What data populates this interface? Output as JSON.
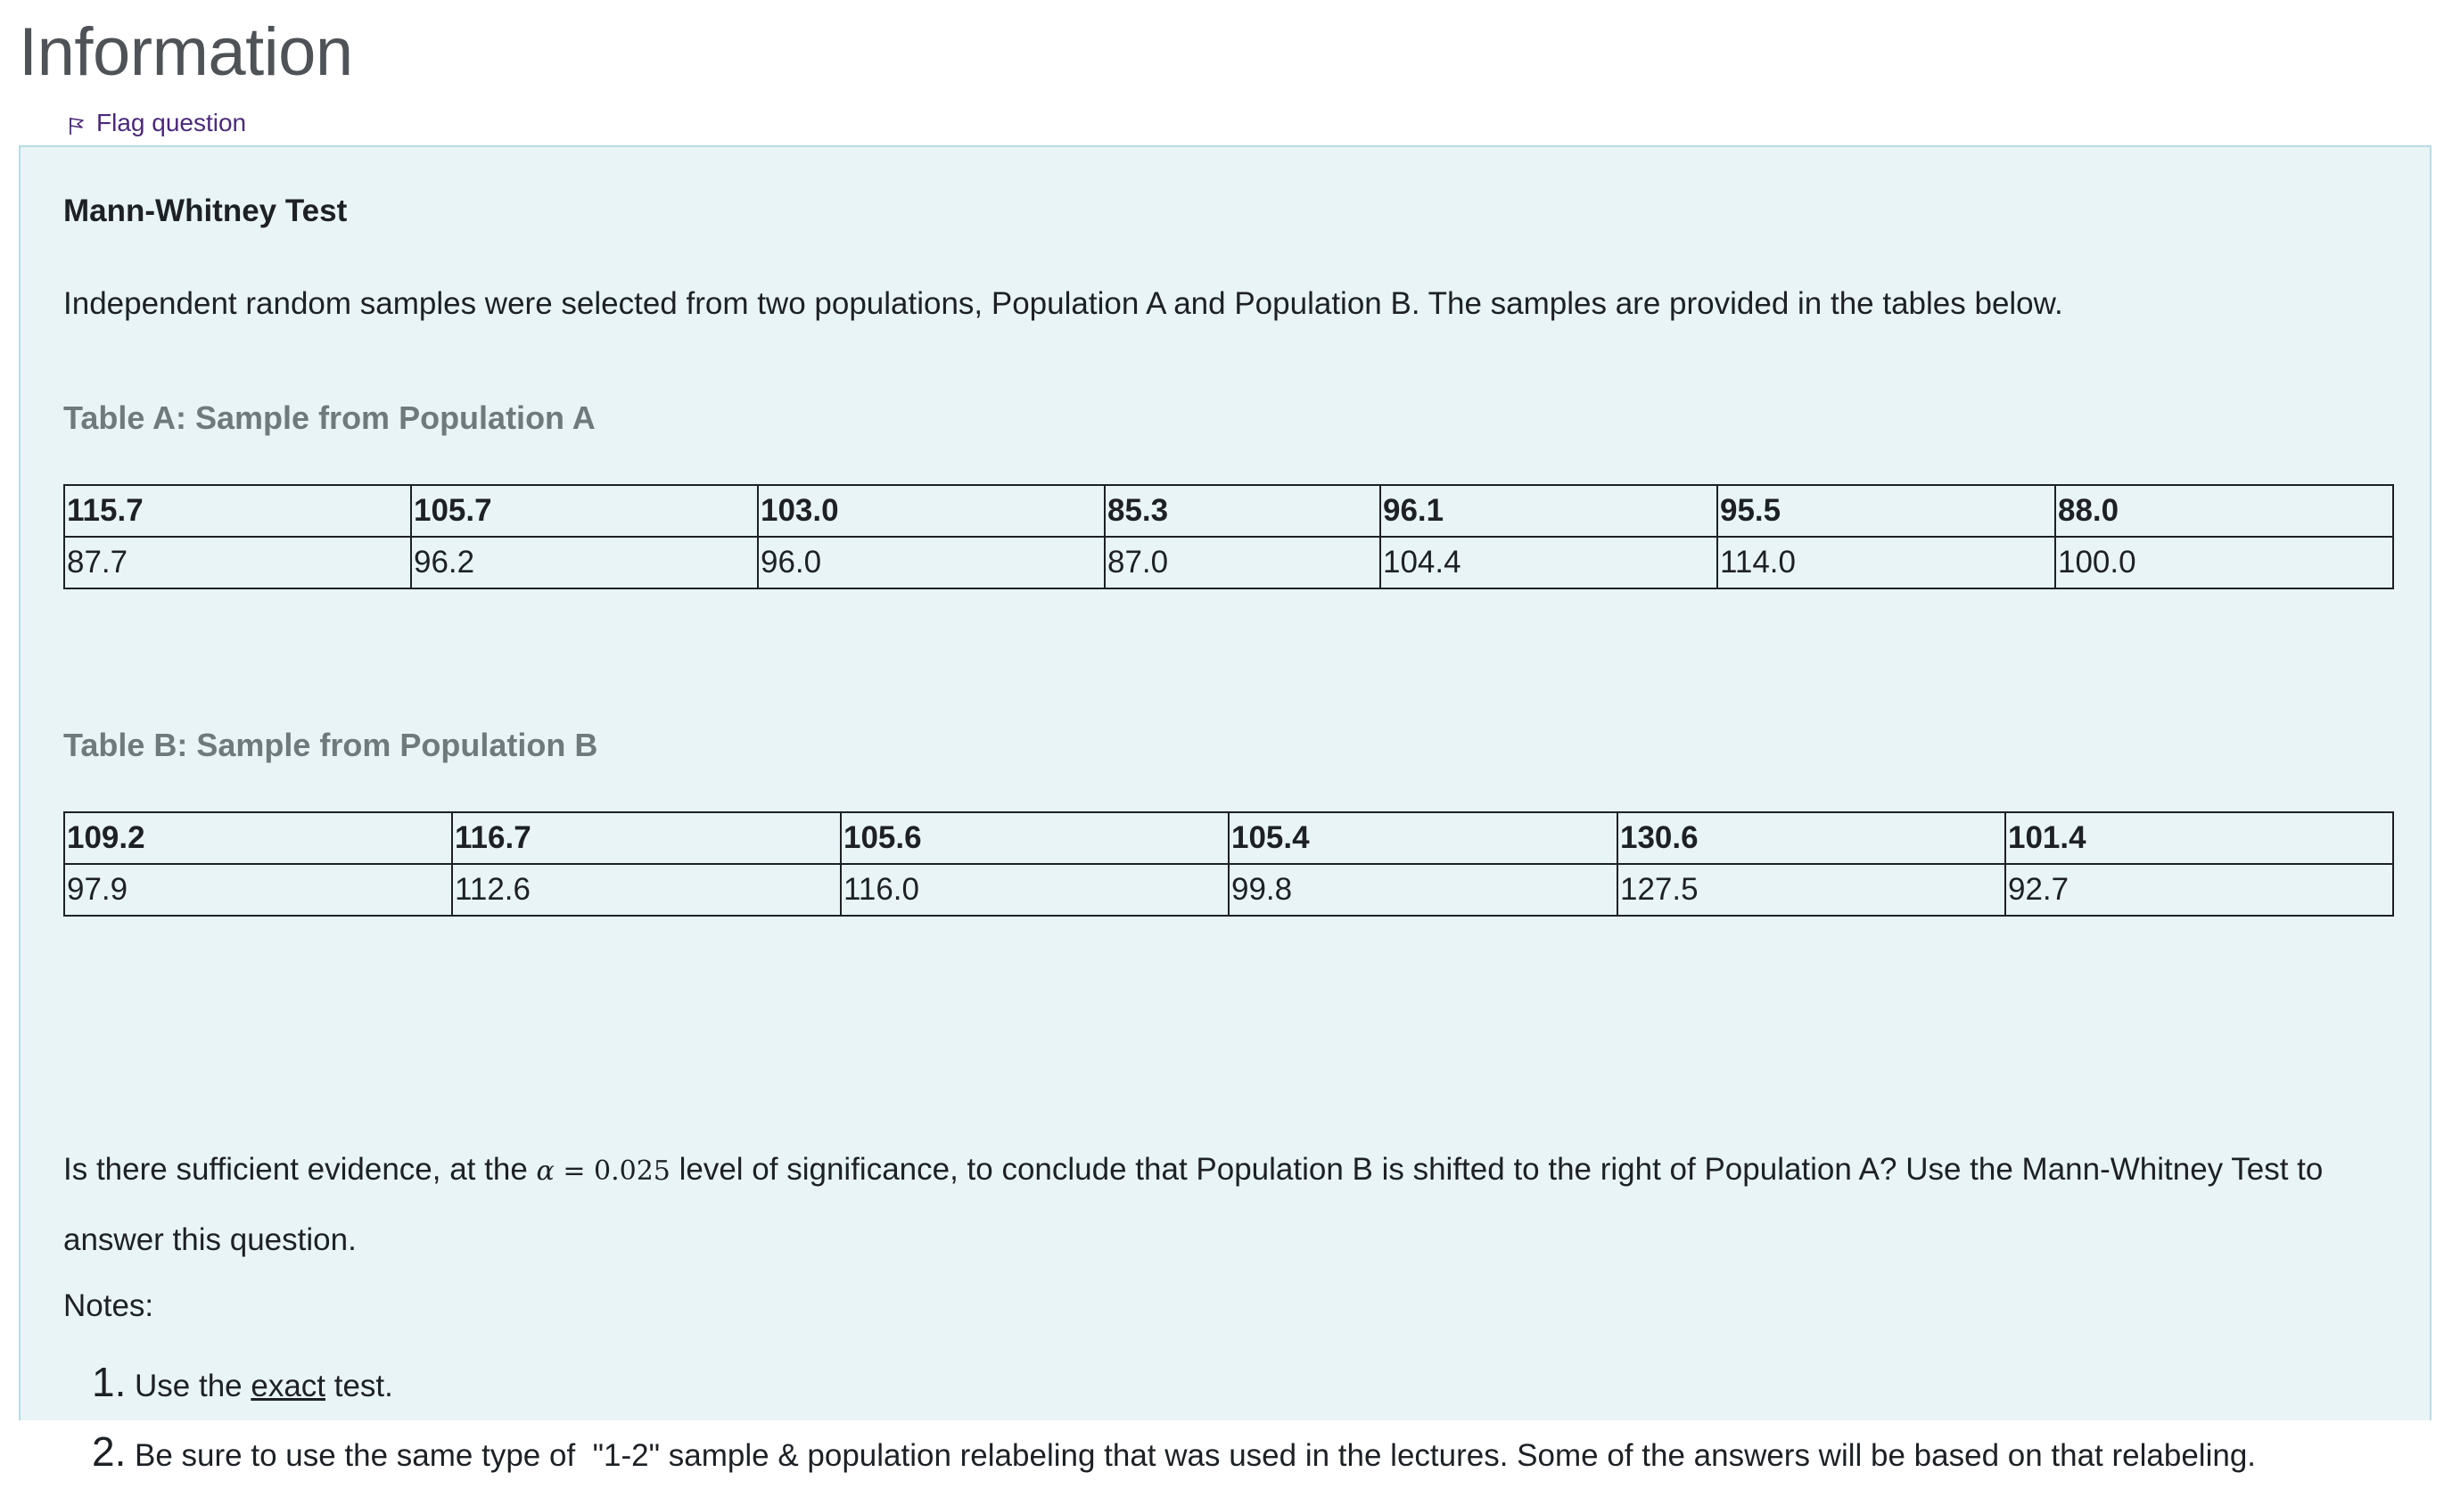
{
  "page_heading": "Information",
  "flag": {
    "label": "Flag question",
    "icon": "flag-icon"
  },
  "colors": {
    "info_bg": "#e9f4f6",
    "info_border": "#b6dde4",
    "link": "#4b2a7a",
    "table_heading": "#6f7a7c"
  },
  "content": {
    "title": "Mann-Whitney Test",
    "intro": "Independent random samples were selected from two populations, Population A and Population B. The samples are provided in the tables below.",
    "table_a": {
      "heading": "Table A: Sample from Population A",
      "rows": [
        [
          "115.7",
          "105.7",
          "103.0",
          "85.3",
          "96.1",
          "95.5",
          "88.0"
        ],
        [
          "87.7",
          "96.2",
          "96.0",
          "87.0",
          "104.4",
          "114.0",
          "100.0"
        ]
      ]
    },
    "table_b": {
      "heading": "Table B: Sample from Population B",
      "rows": [
        [
          "109.2",
          "116.7",
          "105.6",
          "105.4",
          "130.6",
          "101.4"
        ],
        [
          "97.9",
          "112.6",
          "116.0",
          "99.8",
          "127.5",
          "92.7"
        ]
      ]
    },
    "question": {
      "before": "Is there sufficient evidence, at the ",
      "math_symbol": "α",
      "math_rest": " = 0.025",
      "after": " level of significance, to conclude that Population B is shifted to the right of Population A? Use the Mann-Whitney Test to answer this question."
    },
    "notes_label": "Notes:",
    "notes": [
      {
        "number": "1.",
        "before": "Use the ",
        "underlined": "exact",
        "after": " test."
      },
      {
        "number": "2.",
        "text": "Be sure to use the same type of  \"1-2\" sample & population relabeling that was used in the lectures. Some of the answers will be based on that relabeling."
      }
    ]
  }
}
